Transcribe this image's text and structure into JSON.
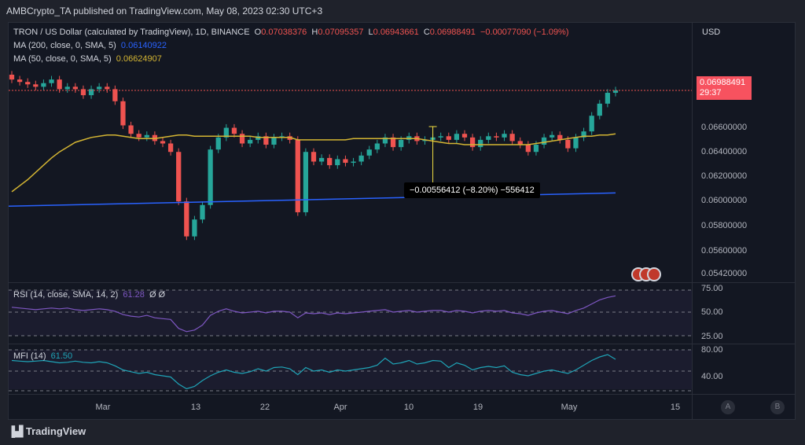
{
  "header": {
    "published": "AMBCrypto_TA published on TradingView.com, May 08, 2023 02:30 UTC+3"
  },
  "legend": {
    "symbol": "TRON / US Dollar (calculated by TradingView), 1D, BINANCE",
    "o_label": "O",
    "o_value": "0.07038376",
    "h_label": "H",
    "h_value": "0.07095357",
    "l_label": "L",
    "l_value": "0.06943661",
    "c_label": "C",
    "c_value": "0.06988491",
    "change": "−0.00077090 (−1.09%)",
    "ma200_label": "MA (200, close, 0, SMA, 5)",
    "ma200_value": "0.06140922",
    "ma50_label": "MA (50, close, 0, SMA, 5)",
    "ma50_value": "0.06624907",
    "rsi_label": "RSI (14, close, SMA, 14, 2)",
    "rsi_value": "61.28",
    "rsi_extra": "Ø Ø",
    "mfi_label": "MFI (14)",
    "mfi_value": "61.50"
  },
  "axis": {
    "currency": "USD",
    "last_price": "0.06988491",
    "countdown": "29:37",
    "measure": "−0.00556412 (−8.20%) −556412",
    "price_ticks": [
      "0.06600000",
      "0.06400000",
      "0.06200000",
      "0.06000000",
      "0.05800000",
      "0.05600000",
      "0.05420000"
    ],
    "rsi_ticks": [
      "75.00",
      "50.00",
      "25.00"
    ],
    "mfi_ticks": [
      "80.00",
      "40.00"
    ],
    "date_ticks": [
      "Mar",
      "13",
      "22",
      "Apr",
      "10",
      "19",
      "May",
      "15"
    ]
  },
  "footer": {
    "logo": "TradingView",
    "btn_a": "A",
    "btn_b": "B"
  },
  "colors": {
    "up": "#26a69a",
    "down": "#ef5350",
    "ma50": "#d4b533",
    "ma200": "#2962ff",
    "rsi": "#7e57c2",
    "mfi": "#1fa4b7",
    "measure": "#f5e142"
  },
  "chart_data": {
    "type": "candlestick",
    "title": "TRON / US Dollar (calculated by TradingView), 1D, BINANCE",
    "ylim": [
      0.054,
      0.0755
    ],
    "x_start": "2023-02-21",
    "x_end": "2023-05-08",
    "closes": [
      0.0708,
      0.0706,
      0.0704,
      0.0702,
      0.0705,
      0.0708,
      0.07,
      0.0702,
      0.07,
      0.0695,
      0.07,
      0.0702,
      0.07,
      0.069,
      0.067,
      0.0663,
      0.066,
      0.0662,
      0.0657,
      0.0655,
      0.0648,
      0.0607,
      0.0578,
      0.0592,
      0.0604,
      0.065,
      0.066,
      0.0668,
      0.0663,
      0.0655,
      0.0658,
      0.0661,
      0.0654,
      0.066,
      0.0661,
      0.0658,
      0.0598,
      0.0648,
      0.064,
      0.0643,
      0.0637,
      0.0642,
      0.0639,
      0.064,
      0.0645,
      0.065,
      0.0655,
      0.066,
      0.0652,
      0.0658,
      0.0661,
      0.0657,
      0.0658,
      0.066,
      0.0661,
      0.0658,
      0.0663,
      0.066,
      0.0652,
      0.0658,
      0.0661,
      0.066,
      0.0663,
      0.0657,
      0.0654,
      0.0648,
      0.0654,
      0.066,
      0.0662,
      0.0658,
      0.0651,
      0.066,
      0.0665,
      0.0678,
      0.0688,
      0.0697,
      0.0699
    ],
    "ma50": [
      0.0615,
      0.062,
      0.0625,
      0.0631,
      0.0637,
      0.0643,
      0.0648,
      0.0652,
      0.0656,
      0.0658,
      0.066,
      0.0661,
      0.0662,
      0.0662,
      0.0661,
      0.066,
      0.0659,
      0.0659,
      0.0659,
      0.066,
      0.0661,
      0.0662,
      0.0662,
      0.0661,
      0.0661,
      0.0661,
      0.0661,
      0.0661,
      0.0661,
      0.0661,
      0.0661,
      0.066,
      0.066,
      0.066,
      0.066,
      0.066,
      0.0658,
      0.0658,
      0.0658,
      0.0658,
      0.0658,
      0.0658,
      0.0658,
      0.0659,
      0.0659,
      0.0659,
      0.0659,
      0.0659,
      0.0659,
      0.0659,
      0.0659,
      0.0659,
      0.0658,
      0.0657,
      0.0656,
      0.0655,
      0.0655,
      0.0654,
      0.0654,
      0.0654,
      0.0654,
      0.0654,
      0.0654,
      0.0654,
      0.0654,
      0.0654,
      0.0655,
      0.0656,
      0.0657,
      0.0658,
      0.0659,
      0.066,
      0.0661,
      0.0661,
      0.0662,
      0.0662,
      0.0663
    ],
    "ma200_start": 0.0603,
    "ma200_end": 0.0614,
    "rsi": [
      57,
      56,
      55,
      54,
      55,
      56,
      55,
      56,
      54,
      53,
      54,
      55,
      54,
      52,
      48,
      46,
      45,
      47,
      44,
      43,
      42,
      31,
      27,
      29,
      35,
      47,
      52,
      55,
      52,
      50,
      51,
      52,
      50,
      52,
      52,
      51,
      44,
      50,
      49,
      50,
      48,
      50,
      49,
      50,
      51,
      52,
      53,
      54,
      51,
      52,
      53,
      51,
      52,
      53,
      53,
      51,
      53,
      52,
      50,
      52,
      53,
      52,
      53,
      50,
      49,
      47,
      50,
      52,
      53,
      51,
      49,
      53,
      56,
      61,
      66,
      69,
      71
    ],
    "mfi": [
      64,
      63,
      62,
      63,
      64,
      62,
      60,
      61,
      63,
      61,
      60,
      62,
      60,
      55,
      48,
      45,
      42,
      44,
      40,
      38,
      36,
      24,
      16,
      20,
      30,
      38,
      44,
      48,
      44,
      42,
      45,
      50,
      46,
      52,
      53,
      50,
      40,
      52,
      46,
      48,
      44,
      48,
      46,
      48,
      50,
      52,
      56,
      68,
      58,
      60,
      64,
      58,
      60,
      64,
      63,
      52,
      60,
      56,
      48,
      52,
      54,
      52,
      55,
      44,
      40,
      38,
      42,
      46,
      48,
      45,
      42,
      48,
      56,
      64,
      70,
      74,
      66
    ],
    "measure_change": -0.00556412
  }
}
